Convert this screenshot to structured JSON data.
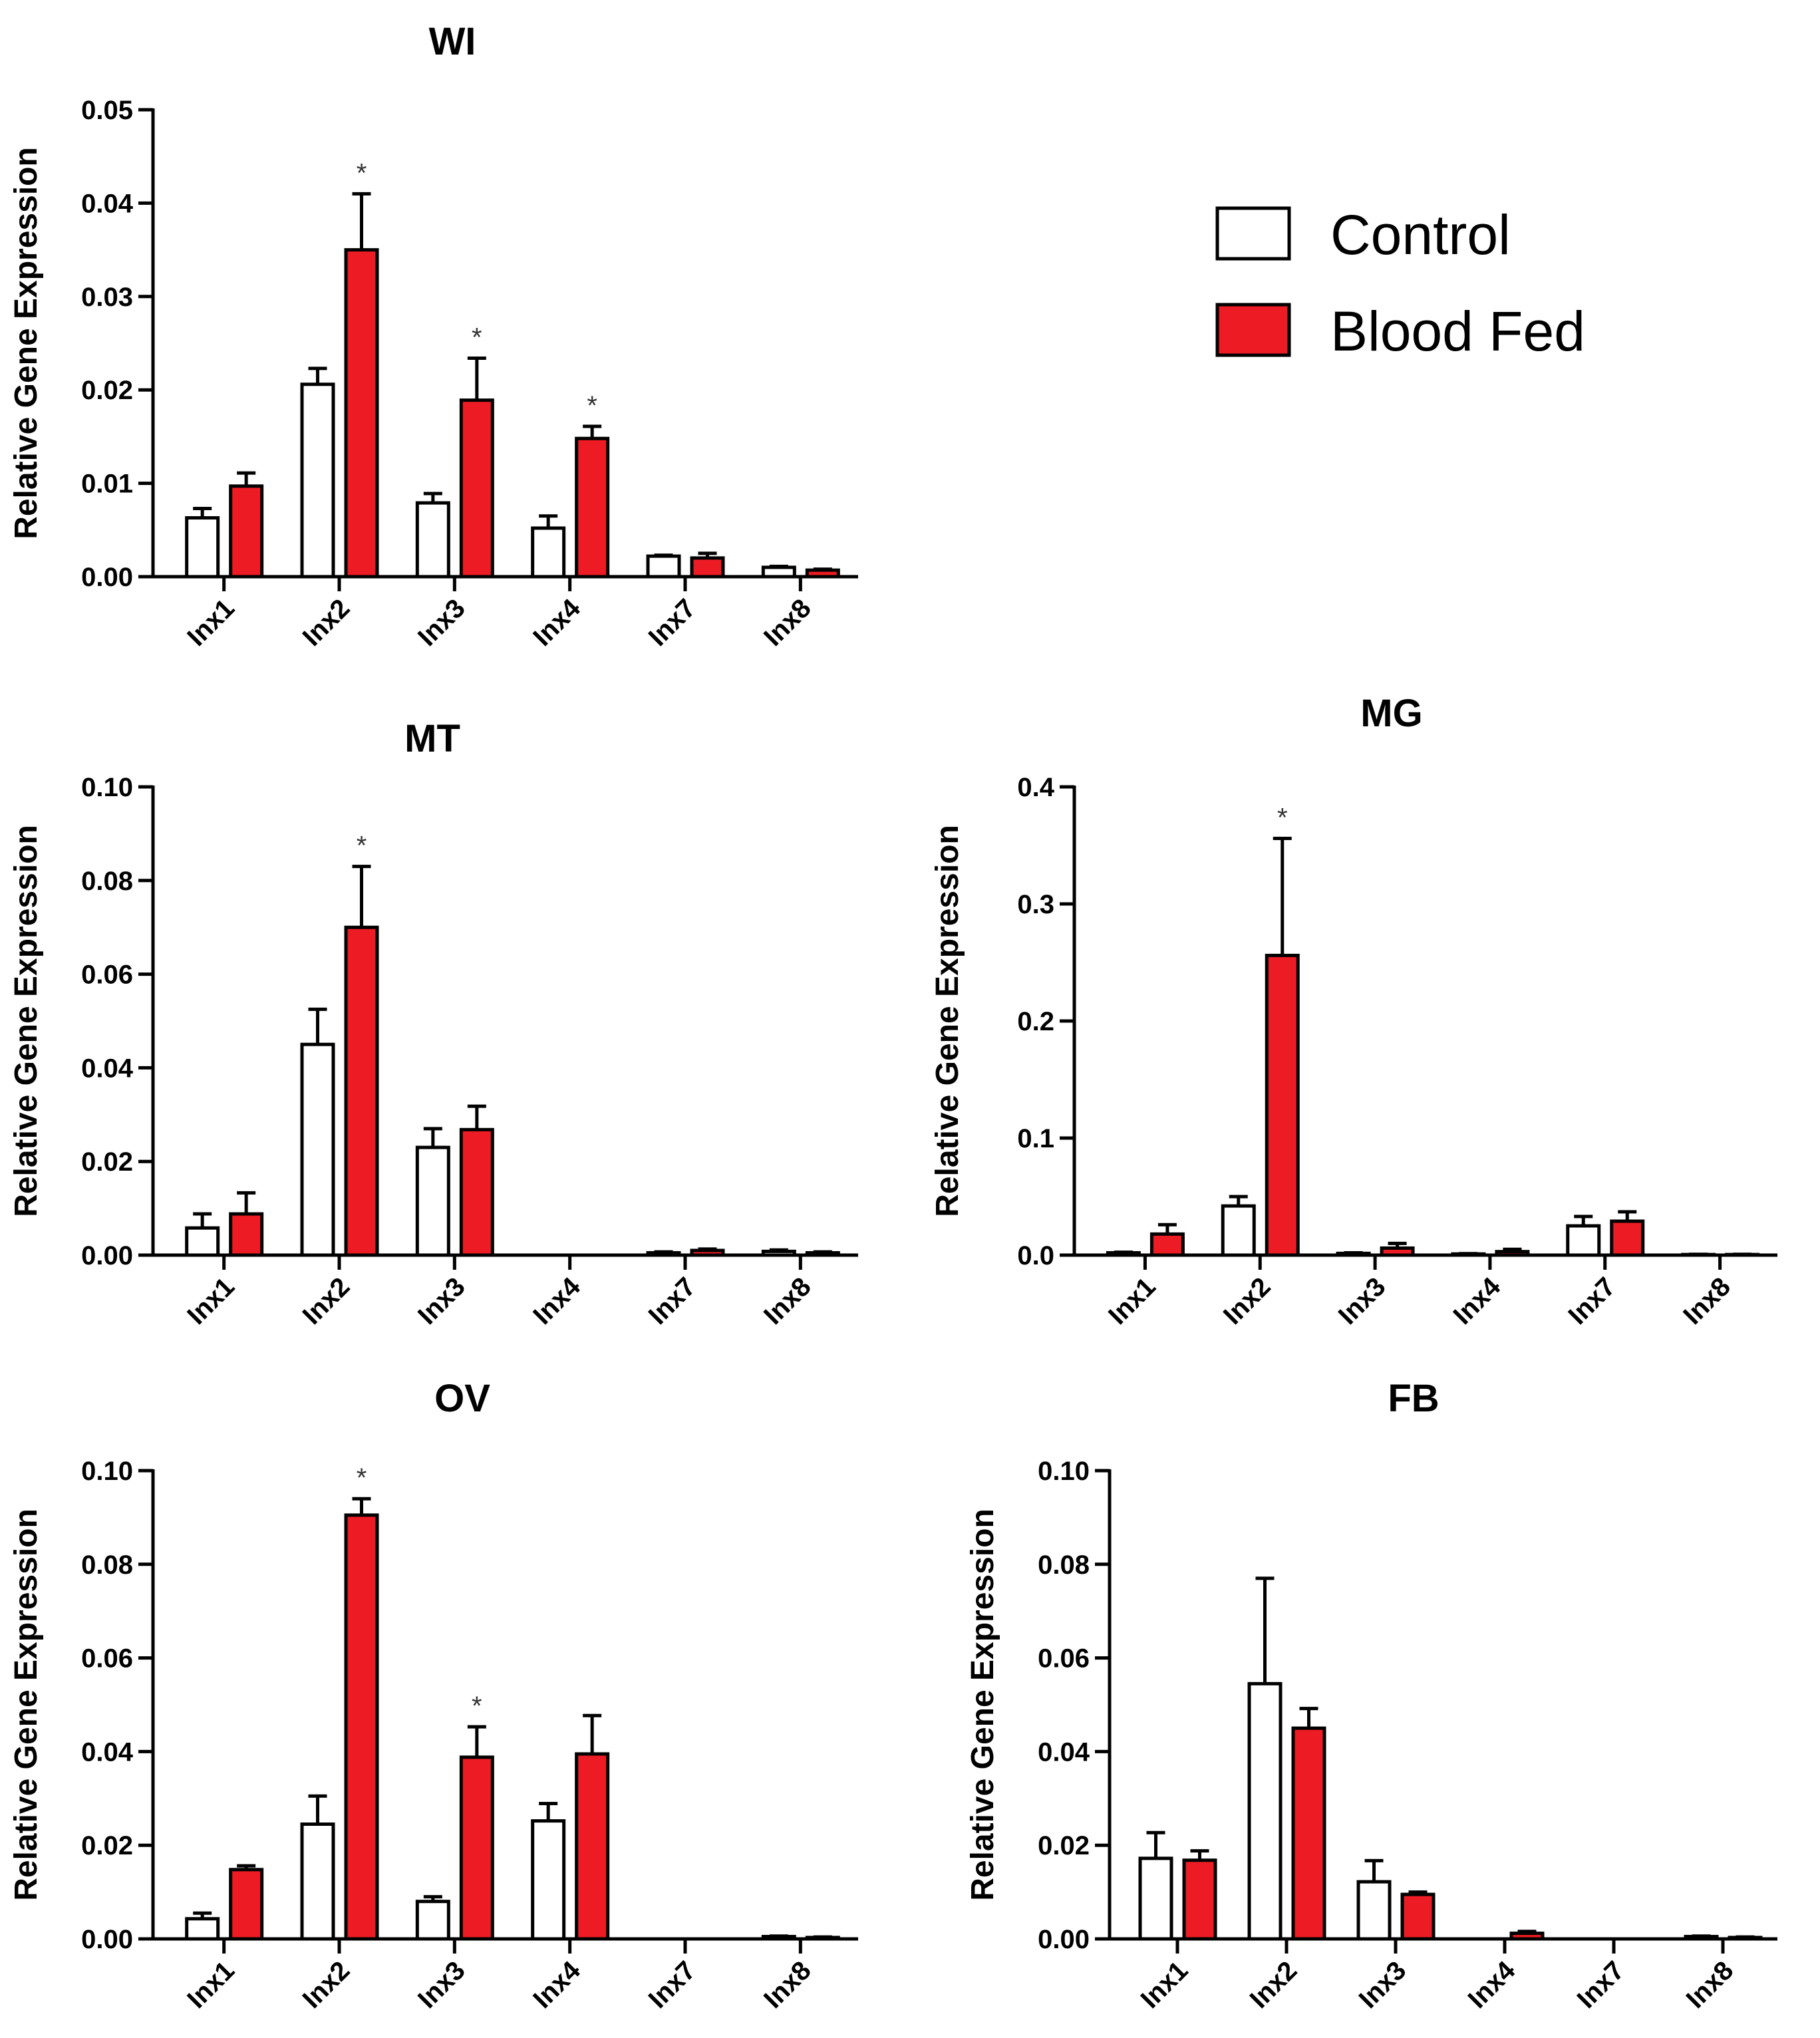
{
  "colors": {
    "control_fill": "#ffffff",
    "blood_fed_fill": "#ed1c24",
    "stroke": "#000000"
  },
  "legend": {
    "items": [
      {
        "label": "Control",
        "color": "#ffffff"
      },
      {
        "label": "Blood Fed",
        "color": "#ed1c24"
      }
    ]
  },
  "chart_data": [
    {
      "type": "bar",
      "title": "WI",
      "ylabel": "Relative Gene Expression",
      "xlabel": "",
      "categories": [
        "Inx1",
        "Inx2",
        "Inx3",
        "Inx4",
        "Inx7",
        "Inx8"
      ],
      "ylim": [
        0,
        0.05
      ],
      "yticks": [
        "0.00",
        "0.01",
        "0.02",
        "0.03",
        "0.04",
        "0.05"
      ],
      "series": [
        {
          "name": "Control",
          "values": [
            0.0063,
            0.0206,
            0.0079,
            0.0052,
            0.0022,
            0.001
          ],
          "errors": [
            0.001,
            0.0017,
            0.001,
            0.0013,
            0.0001,
            0.0001
          ]
        },
        {
          "name": "Blood Fed",
          "values": [
            0.0097,
            0.035,
            0.0189,
            0.0148,
            0.002,
            0.0007
          ],
          "errors": [
            0.0014,
            0.006,
            0.0045,
            0.0013,
            0.0005,
            0.0001
          ]
        }
      ],
      "significance": [
        {
          "category": "Inx2",
          "mark": "*"
        },
        {
          "category": "Inx3",
          "mark": "*"
        },
        {
          "category": "Inx4",
          "mark": "*"
        }
      ]
    },
    {
      "type": "bar",
      "title": "MT",
      "ylabel": "Relative Gene Expression",
      "xlabel": "",
      "categories": [
        "Inx1",
        "Inx2",
        "Inx3",
        "Inx4",
        "Inx7",
        "Inx8"
      ],
      "ylim": [
        0,
        0.1
      ],
      "yticks": [
        "0.00",
        "0.02",
        "0.04",
        "0.06",
        "0.08",
        "0.10"
      ],
      "series": [
        {
          "name": "Control",
          "values": [
            0.0058,
            0.045,
            0.023,
            0.0,
            0.0005,
            0.0008
          ],
          "errors": [
            0.003,
            0.0075,
            0.004,
            0.0,
            0.0002,
            0.0003
          ]
        },
        {
          "name": "Blood Fed",
          "values": [
            0.0088,
            0.07,
            0.0268,
            0.0,
            0.001,
            0.0005
          ],
          "errors": [
            0.0045,
            0.013,
            0.005,
            0.0,
            0.0003,
            0.0002
          ]
        }
      ],
      "significance": [
        {
          "category": "Inx2",
          "mark": "*"
        }
      ]
    },
    {
      "type": "bar",
      "title": "MG",
      "ylabel": "Relative Gene Expression",
      "xlabel": "",
      "categories": [
        "Inx1",
        "Inx2",
        "Inx3",
        "Inx4",
        "Inx7",
        "Inx8"
      ],
      "ylim": [
        0,
        0.4
      ],
      "yticks": [
        "0.0",
        "0.1",
        "0.2",
        "0.3",
        "0.4"
      ],
      "series": [
        {
          "name": "Control",
          "values": [
            0.002,
            0.042,
            0.0015,
            0.001,
            0.025,
            0.0005
          ],
          "errors": [
            0.0005,
            0.008,
            0.0005,
            0.0003,
            0.008,
            0.0002
          ]
        },
        {
          "name": "Blood Fed",
          "values": [
            0.018,
            0.256,
            0.006,
            0.003,
            0.029,
            0.0005
          ],
          "errors": [
            0.008,
            0.1,
            0.004,
            0.002,
            0.008,
            0.0002
          ]
        }
      ],
      "significance": [
        {
          "category": "Inx2",
          "mark": "*"
        }
      ]
    },
    {
      "type": "bar",
      "title": "OV",
      "ylabel": "Relative Gene Expression",
      "xlabel": "",
      "categories": [
        "Inx1",
        "Inx2",
        "Inx3",
        "Inx4",
        "Inx7",
        "Inx8"
      ],
      "ylim": [
        0,
        0.1
      ],
      "yticks": [
        "0.00",
        "0.02",
        "0.04",
        "0.06",
        "0.08",
        "0.10"
      ],
      "series": [
        {
          "name": "Control",
          "values": [
            0.0043,
            0.0245,
            0.008,
            0.0252,
            0.0,
            0.0005
          ],
          "errors": [
            0.0012,
            0.006,
            0.001,
            0.0037,
            0.0,
            0.0001
          ]
        },
        {
          "name": "Blood Fed",
          "values": [
            0.0148,
            0.0905,
            0.0388,
            0.0395,
            0.0,
            0.0003
          ],
          "errors": [
            0.0008,
            0.0035,
            0.0065,
            0.0082,
            0.0,
            0.0001
          ]
        }
      ],
      "significance": [
        {
          "category": "Inx2",
          "mark": "*"
        },
        {
          "category": "Inx3",
          "mark": "*"
        }
      ]
    },
    {
      "type": "bar",
      "title": "FB",
      "ylabel": "Relative Gene Expression",
      "xlabel": "",
      "categories": [
        "Inx1",
        "Inx2",
        "Inx3",
        "Inx4",
        "Inx7",
        "Inx8"
      ],
      "ylim": [
        0,
        0.1
      ],
      "yticks": [
        "0.00",
        "0.02",
        "0.04",
        "0.06",
        "0.08",
        "0.10"
      ],
      "series": [
        {
          "name": "Control",
          "values": [
            0.0172,
            0.0545,
            0.0122,
            0.0,
            0.0,
            0.0005
          ],
          "errors": [
            0.0055,
            0.0225,
            0.0045,
            0.0,
            0.0,
            0.0001
          ]
        },
        {
          "name": "Blood Fed",
          "values": [
            0.0168,
            0.045,
            0.0095,
            0.0012,
            0.0,
            0.0003
          ],
          "errors": [
            0.002,
            0.0042,
            0.0005,
            0.0004,
            0.0,
            0.0001
          ]
        }
      ],
      "significance": []
    }
  ]
}
